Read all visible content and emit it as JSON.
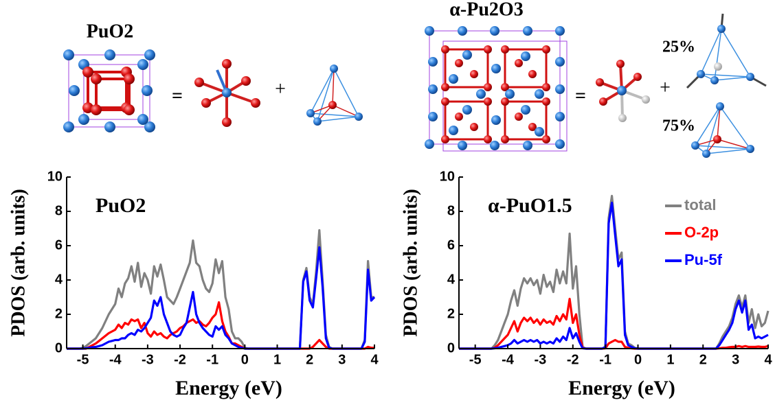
{
  "illustrations": {
    "labels": [
      "PuO2",
      "=",
      "+",
      "α-Pu2O3",
      "=",
      "+",
      "25%",
      "75%"
    ]
  },
  "chart_data": [
    {
      "type": "line",
      "title": "PuO2",
      "x_label": "Energy (eV)",
      "y_label": "PDOS (arb. units)",
      "xlim": [
        -5.5,
        4
      ],
      "ylim": [
        0,
        10
      ],
      "xticks": [
        -5,
        -4,
        -3,
        -2,
        -1,
        0,
        1,
        2,
        3,
        4
      ],
      "yticks": [
        0,
        2,
        4,
        6,
        8,
        10
      ],
      "x": [
        -5.5,
        -5.4,
        -5.3,
        -5.2,
        -5.1,
        -5.0,
        -4.9,
        -4.8,
        -4.7,
        -4.6,
        -4.5,
        -4.4,
        -4.3,
        -4.2,
        -4.1,
        -4.0,
        -3.9,
        -3.8,
        -3.7,
        -3.6,
        -3.5,
        -3.4,
        -3.3,
        -3.2,
        -3.1,
        -3.0,
        -2.9,
        -2.8,
        -2.7,
        -2.6,
        -2.5,
        -2.4,
        -2.3,
        -2.2,
        -2.1,
        -2.0,
        -1.9,
        -1.8,
        -1.7,
        -1.6,
        -1.5,
        -1.4,
        -1.3,
        -1.2,
        -1.1,
        -1.0,
        -0.9,
        -0.8,
        -0.7,
        -0.6,
        -0.5,
        -0.4,
        -0.3,
        -0.2,
        -0.1,
        0.0,
        0.1,
        0.2,
        0.3,
        0.4,
        0.5,
        0.6,
        0.7,
        0.8,
        0.9,
        1.0,
        1.1,
        1.2,
        1.3,
        1.4,
        1.5,
        1.6,
        1.7,
        1.8,
        1.9,
        2.0,
        2.1,
        2.2,
        2.3,
        2.4,
        2.5,
        2.6,
        2.7,
        2.8,
        2.9,
        3.0,
        3.1,
        3.2,
        3.3,
        3.4,
        3.5,
        3.6,
        3.7,
        3.8,
        3.9,
        4.0
      ],
      "series": [
        {
          "color": "#808080",
          "values": [
            0,
            0,
            0,
            0,
            0,
            0.05,
            0.15,
            0.3,
            0.45,
            0.6,
            0.9,
            1.2,
            1.6,
            2.0,
            2.3,
            2.6,
            3.5,
            3.0,
            3.8,
            4.1,
            4.8,
            3.9,
            5.0,
            3.6,
            4.4,
            4.0,
            3.2,
            4.8,
            4.2,
            4.9,
            4.0,
            3.0,
            2.8,
            2.6,
            3.0,
            3.5,
            4.0,
            4.5,
            5.0,
            6.3,
            5.0,
            4.8,
            4.0,
            3.5,
            3.3,
            3.8,
            5.2,
            4.4,
            5.1,
            3.0,
            2.3,
            1.0,
            0.6,
            0.6,
            0.4,
            0.05,
            0,
            0,
            0,
            0,
            0,
            0,
            0,
            0,
            0,
            0,
            0,
            0,
            0,
            0,
            0,
            0,
            0,
            4.0,
            4.7,
            3.0,
            2.6,
            4.5,
            6.9,
            4.0,
            0.8,
            0.1,
            0,
            0,
            0,
            0,
            0,
            0,
            0,
            0,
            0,
            0,
            0.5,
            5.1,
            3.0,
            3.0
          ]
        },
        {
          "color": "#ff0000",
          "values": [
            0,
            0,
            0,
            0,
            0,
            0,
            0,
            0.1,
            0.2,
            0.3,
            0.45,
            0.6,
            0.75,
            0.9,
            1.0,
            1.1,
            1.4,
            1.2,
            1.5,
            1.4,
            1.7,
            1.6,
            1.7,
            1.2,
            1.5,
            0.9,
            0.7,
            1.0,
            0.8,
            0.9,
            0.7,
            0.6,
            0.8,
            0.9,
            1.0,
            1.2,
            1.3,
            1.5,
            1.6,
            1.7,
            1.5,
            1.6,
            1.4,
            1.3,
            1.5,
            1.8,
            2.0,
            2.7,
            1.6,
            1.0,
            0.7,
            0.3,
            0.3,
            0.2,
            0.1,
            0,
            0,
            0,
            0,
            0,
            0,
            0,
            0,
            0,
            0,
            0,
            0,
            0,
            0,
            0,
            0,
            0,
            0,
            0,
            0,
            0,
            0.1,
            0.3,
            0.5,
            0.3,
            0.1,
            0,
            0,
            0,
            0,
            0,
            0,
            0,
            0,
            0,
            0,
            0,
            0,
            0.1,
            0.05,
            0.05
          ]
        },
        {
          "color": "#0000ff",
          "values": [
            0,
            0,
            0,
            0,
            0,
            0,
            0.02,
            0.05,
            0.08,
            0.1,
            0.15,
            0.2,
            0.3,
            0.4,
            0.45,
            0.5,
            0.5,
            0.6,
            0.6,
            0.8,
            0.9,
            0.8,
            1.1,
            1.0,
            1.2,
            1.5,
            1.8,
            2.8,
            2.5,
            3.0,
            2.0,
            1.5,
            1.0,
            0.8,
            0.7,
            0.8,
            1.2,
            1.5,
            2.4,
            3.3,
            2.0,
            1.5,
            1.2,
            1.0,
            0.8,
            0.7,
            1.3,
            1.1,
            1.3,
            0.8,
            0.6,
            0.3,
            0.2,
            0.1,
            0.05,
            0,
            0,
            0,
            0,
            0,
            0,
            0,
            0,
            0,
            0,
            0,
            0,
            0,
            0,
            0,
            0,
            0,
            0,
            3.9,
            4.5,
            2.8,
            2.4,
            4.1,
            5.9,
            3.6,
            0.6,
            0.05,
            0,
            0,
            0,
            0,
            0,
            0,
            0,
            0,
            0,
            0,
            0.4,
            4.6,
            2.8,
            3.0
          ]
        }
      ]
    },
    {
      "type": "line",
      "title": "α-PuO1.5",
      "x_label": "Energy (eV)",
      "y_label": "PDOS (arb. units)",
      "xlim": [
        -5.5,
        4
      ],
      "ylim": [
        0,
        10
      ],
      "xticks": [
        -5,
        -4,
        -3,
        -2,
        -1,
        0,
        1,
        2,
        3,
        4
      ],
      "yticks": [
        0,
        2,
        4,
        6,
        8,
        10
      ],
      "legend": "upper right",
      "x": [
        -5.5,
        -5.4,
        -5.3,
        -5.2,
        -5.1,
        -5.0,
        -4.9,
        -4.8,
        -4.7,
        -4.6,
        -4.5,
        -4.4,
        -4.3,
        -4.2,
        -4.1,
        -4.0,
        -3.9,
        -3.8,
        -3.7,
        -3.6,
        -3.5,
        -3.4,
        -3.3,
        -3.2,
        -3.1,
        -3.0,
        -2.9,
        -2.8,
        -2.7,
        -2.6,
        -2.5,
        -2.4,
        -2.3,
        -2.2,
        -2.1,
        -2.0,
        -1.9,
        -1.8,
        -1.7,
        -1.6,
        -1.5,
        -1.4,
        -1.3,
        -1.2,
        -1.1,
        -1.0,
        -0.9,
        -0.8,
        -0.7,
        -0.6,
        -0.5,
        -0.4,
        -0.3,
        -0.2,
        -0.1,
        0.0,
        0.1,
        0.2,
        0.3,
        0.4,
        0.5,
        0.6,
        0.7,
        0.8,
        0.9,
        1.0,
        1.1,
        1.2,
        1.3,
        1.4,
        1.5,
        1.6,
        1.7,
        1.8,
        1.9,
        2.0,
        2.1,
        2.2,
        2.3,
        2.4,
        2.5,
        2.6,
        2.7,
        2.8,
        2.9,
        3.0,
        3.1,
        3.2,
        3.3,
        3.4,
        3.5,
        3.6,
        3.7,
        3.8,
        3.9,
        4.0
      ],
      "series": [
        {
          "name": "total",
          "color": "#808080",
          "values": [
            0,
            0,
            0,
            0,
            0,
            0,
            0,
            0,
            0,
            0,
            0,
            0.2,
            0.5,
            1.0,
            1.5,
            2.0,
            2.8,
            3.4,
            2.5,
            3.5,
            4.1,
            3.8,
            4.1,
            3.7,
            4.0,
            3.2,
            4.3,
            3.6,
            3.9,
            3.3,
            4.6,
            3.8,
            4.5,
            3.8,
            6.7,
            3.5,
            4.8,
            2.0,
            0.1,
            0,
            0,
            0,
            0,
            0,
            0,
            0.1,
            7.6,
            8.9,
            7.0,
            5.2,
            5.6,
            1.0,
            0.3,
            0.2,
            0.05,
            0,
            0,
            0,
            0,
            0,
            0,
            0,
            0,
            0,
            0,
            0,
            0,
            0,
            0,
            0,
            0,
            0,
            0,
            0,
            0,
            0,
            0,
            0,
            0,
            0,
            0.3,
            0.7,
            1.0,
            1.3,
            1.8,
            2.6,
            3.1,
            2.4,
            3.1,
            1.5,
            2.3,
            1.2,
            2.0,
            1.3,
            1.5,
            2.2
          ]
        },
        {
          "name": "O-2p",
          "color": "#ff0000",
          "values": [
            0,
            0,
            0,
            0,
            0,
            0,
            0,
            0,
            0,
            0,
            0,
            0.05,
            0.2,
            0.4,
            0.6,
            0.8,
            1.2,
            1.6,
            1.0,
            1.5,
            1.8,
            1.6,
            1.8,
            1.5,
            1.7,
            1.4,
            1.7,
            1.5,
            1.6,
            1.4,
            1.9,
            1.6,
            2.0,
            1.7,
            2.9,
            1.5,
            2.0,
            0.8,
            0.05,
            0,
            0,
            0,
            0,
            0,
            0,
            0.02,
            0.3,
            0.4,
            0.5,
            0.4,
            0.4,
            0.1,
            0.05,
            0.02,
            0,
            0,
            0,
            0,
            0,
            0,
            0,
            0,
            0,
            0,
            0,
            0,
            0,
            0,
            0,
            0,
            0,
            0,
            0,
            0,
            0,
            0,
            0,
            0,
            0,
            0,
            0.02,
            0.05,
            0.05,
            0.08,
            0.1,
            0.1,
            0.15,
            0.1,
            0.15,
            0.1,
            0.1,
            0.1,
            0.12,
            0.1,
            0.1,
            0.15
          ]
        },
        {
          "name": "Pu-5f",
          "color": "#0000ff",
          "values": [
            0,
            0,
            0,
            0,
            0,
            0,
            0,
            0,
            0,
            0,
            0,
            0.02,
            0.05,
            0.1,
            0.15,
            0.2,
            0.3,
            0.5,
            0.3,
            0.4,
            0.5,
            0.4,
            0.5,
            0.4,
            0.5,
            0.3,
            0.4,
            0.3,
            0.4,
            0.3,
            0.6,
            0.4,
            0.7,
            0.5,
            1.2,
            0.6,
            0.9,
            0.4,
            0.02,
            0,
            0,
            0,
            0,
            0,
            0,
            0.1,
            7.3,
            8.5,
            6.6,
            4.8,
            5.2,
            0.8,
            0.2,
            0.1,
            0.02,
            0,
            0,
            0,
            0,
            0,
            0,
            0,
            0,
            0,
            0,
            0,
            0,
            0,
            0,
            0,
            0,
            0,
            0,
            0,
            0,
            0,
            0,
            0,
            0,
            0,
            0.2,
            0.5,
            0.8,
            1.1,
            1.5,
            2.3,
            2.8,
            2.1,
            2.8,
            1.1,
            1.4,
            0.6,
            0.7,
            0.6,
            0.7,
            0.8
          ]
        }
      ]
    }
  ]
}
